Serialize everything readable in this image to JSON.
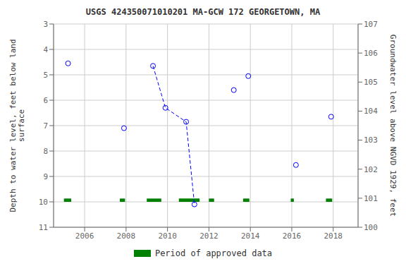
{
  "chart_data": {
    "type": "scatter",
    "title": "USGS 424350071010201 MA-GCW  172 GEORGETOWN, MA",
    "ylabel": "Depth to water level, feet below land\nsurface",
    "y2label": "Groundwater level above NGVD 1929, feet",
    "xlim": [
      2004.5,
      2019.2
    ],
    "xticks": [
      2006,
      2008,
      2010,
      2012,
      2014,
      2016,
      2018
    ],
    "ylim": [
      11.0,
      3.0
    ],
    "yticks": [
      3,
      4,
      5,
      6,
      7,
      8,
      9,
      10,
      11
    ],
    "y2lim": [
      100.0,
      107.0
    ],
    "y2ticks": [
      107,
      106,
      105,
      104,
      103,
      102,
      101,
      100
    ],
    "grid": true,
    "legend": "bottom",
    "x": [
      2005.2,
      2007.9,
      2009.3,
      2009.9,
      2010.9,
      2011.3,
      2013.2,
      2013.9,
      2016.2,
      2017.9
    ],
    "series": [
      {
        "type": "scatter",
        "marker": "circle",
        "color": "blue",
        "values": [
          4.55,
          7.1,
          4.65,
          6.3,
          6.85,
          10.1,
          5.6,
          5.05,
          8.55,
          6.65
        ]
      },
      {
        "type": "line",
        "line_style": "dashed",
        "color": "blue",
        "x": [
          2009.3,
          2009.9,
          2010.9,
          2011.3
        ],
        "values": [
          4.65,
          6.3,
          6.85,
          10.1
        ]
      }
    ],
    "approved_periods": {
      "name": "Period of approved data",
      "color": "#008000",
      "y": 10.0,
      "height": 0.13,
      "segments": [
        [
          2005.0,
          2005.35
        ],
        [
          2007.7,
          2007.95
        ],
        [
          2009.0,
          2009.7
        ],
        [
          2010.55,
          2011.55
        ],
        [
          2012.0,
          2012.25
        ],
        [
          2013.65,
          2013.95
        ],
        [
          2015.95,
          2016.1
        ],
        [
          2017.65,
          2017.95
        ]
      ]
    }
  }
}
